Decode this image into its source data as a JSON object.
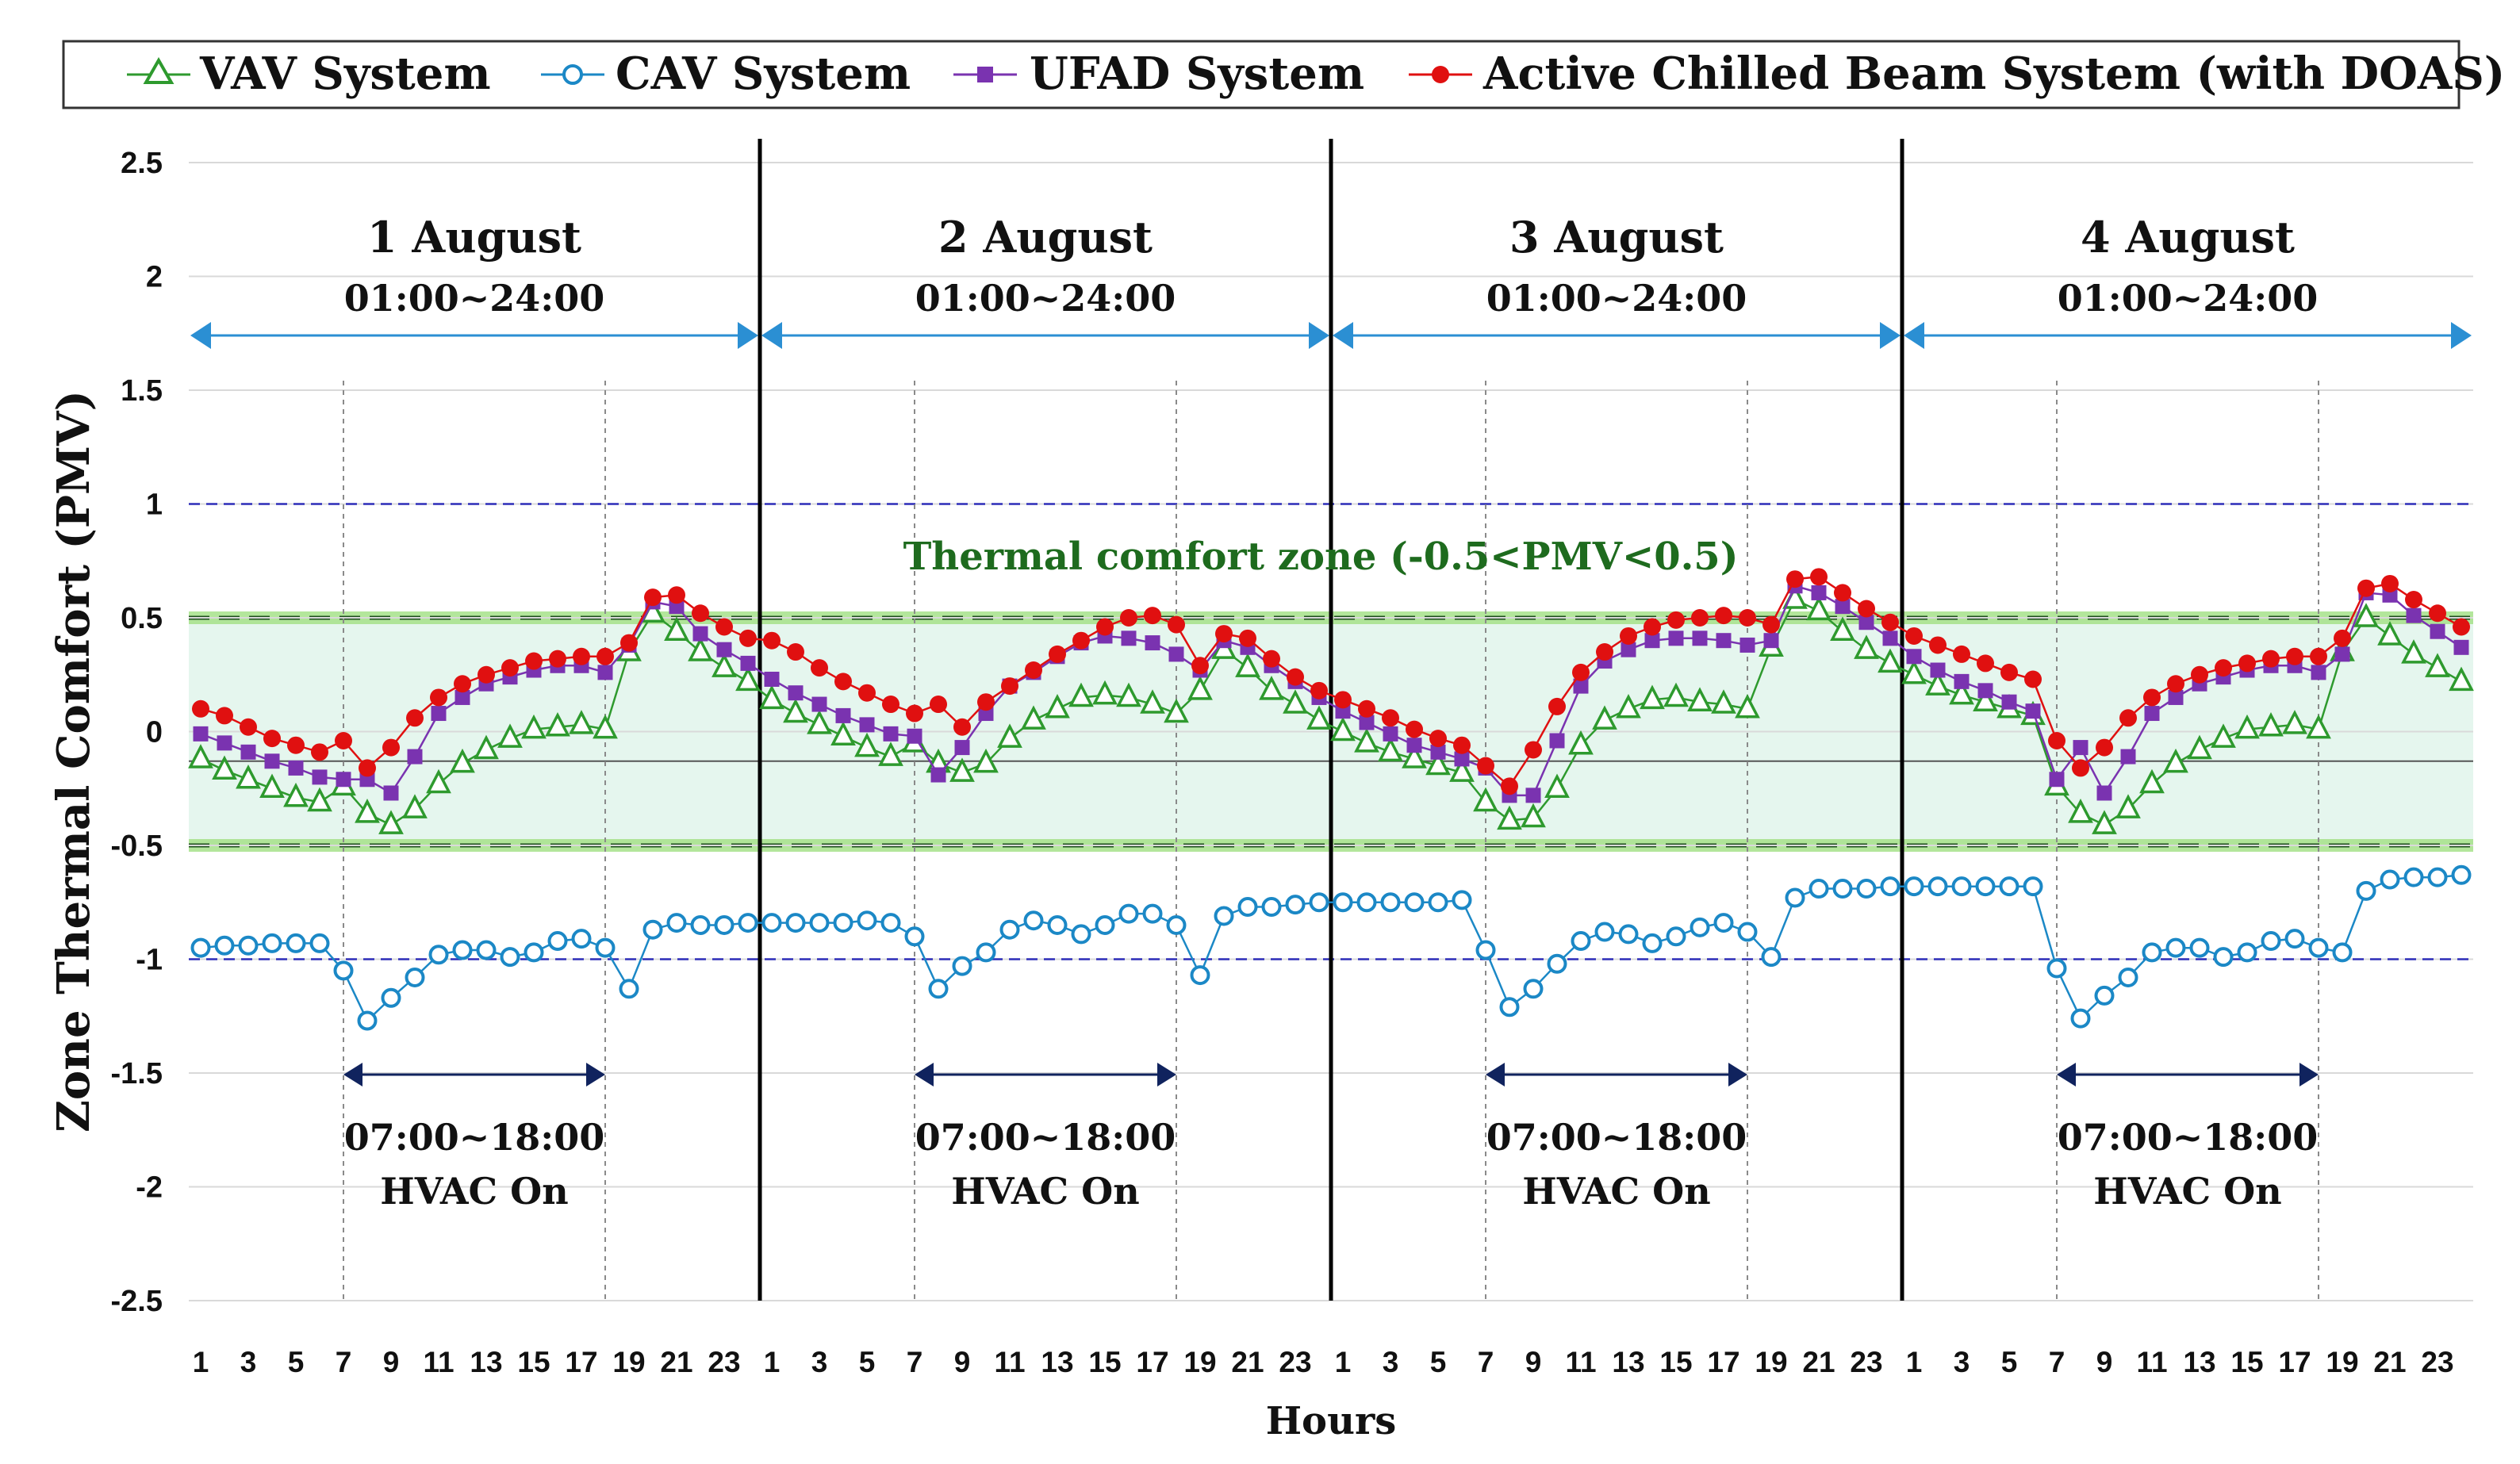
{
  "colors": {
    "vav": "#2e9a2e",
    "cav": "#1b88c6",
    "ufad": "#7a33b0",
    "acb": "#e01010",
    "zone_fill": "#e5f6ee",
    "zone_line": "#1e4d1e",
    "zone_glow": "#a6e28a",
    "day_arrow": "#2b8fd3",
    "hvac_arrow": "#10235e",
    "ref_line": "#2d2db8"
  },
  "chart_data": {
    "type": "line",
    "title": "",
    "xlabel": "Hours",
    "ylabel": "Zone Thermal Comfort (PMV)",
    "ylim": [
      -2.5,
      2.5
    ],
    "yticks": [
      "2.5",
      "2",
      "1.5",
      "1",
      "0.5",
      "0",
      "-0.5",
      "-1",
      "-1.5",
      "-2",
      "-2.5"
    ],
    "ytick_values": [
      2.5,
      2,
      1.5,
      1,
      0.5,
      0,
      -0.5,
      -1,
      -1.5,
      -2,
      -2.5
    ],
    "hours_per_day": 24,
    "x_tick_labels": [
      "1",
      "3",
      "5",
      "7",
      "9",
      "11",
      "13",
      "15",
      "17",
      "19",
      "21",
      "23"
    ],
    "grid": true,
    "legend": [
      {
        "key": "vav",
        "label": "VAV System"
      },
      {
        "key": "cav",
        "label": "CAV System"
      },
      {
        "key": "ufad",
        "label": "UFAD System"
      },
      {
        "key": "acb",
        "label": "Active Chilled Beam System (with DOAS)"
      }
    ],
    "days": [
      {
        "label": "1 August",
        "range": "01:00~24:00",
        "hvac_range": "07:00~18:00",
        "hvac_label": "HVAC On"
      },
      {
        "label": "2 August",
        "range": "01:00~24:00",
        "hvac_range": "07:00~18:00",
        "hvac_label": "HVAC On"
      },
      {
        "label": "3 August",
        "range": "01:00~24:00",
        "hvac_range": "07:00~18:00",
        "hvac_label": "HVAC On"
      },
      {
        "label": "4 August",
        "range": "01:00~24:00",
        "hvac_range": "07:00~18:00",
        "hvac_label": "HVAC On"
      }
    ],
    "hvac_on_hours": [
      7,
      18
    ],
    "comfort_zone": {
      "label": "Thermal comfort zone (-0.5<PMV<0.5)",
      "lower": -0.5,
      "upper": 0.5
    },
    "reference_lines": [
      1,
      -1,
      -0.13
    ],
    "series": [
      {
        "key": "vav",
        "name": "VAV System",
        "marker": "triangle",
        "values": [
          -0.12,
          -0.17,
          -0.21,
          -0.25,
          -0.29,
          -0.31,
          -0.24,
          -0.36,
          -0.41,
          -0.34,
          -0.23,
          -0.14,
          -0.08,
          -0.03,
          0.01,
          0.02,
          0.03,
          0.01,
          0.35,
          0.52,
          0.44,
          0.35,
          0.28,
          0.22,
          0.14,
          0.08,
          0.03,
          -0.02,
          -0.07,
          -0.11,
          -0.05,
          -0.14,
          -0.18,
          -0.14,
          -0.03,
          0.05,
          0.1,
          0.15,
          0.16,
          0.15,
          0.12,
          0.08,
          0.18,
          0.36,
          0.28,
          0.18,
          0.12,
          0.05,
          0.0,
          -0.05,
          -0.09,
          -0.12,
          -0.15,
          -0.18,
          -0.31,
          -0.39,
          -0.38,
          -0.25,
          -0.06,
          0.05,
          0.1,
          0.14,
          0.15,
          0.13,
          0.12,
          0.1,
          0.37,
          0.58,
          0.53,
          0.44,
          0.36,
          0.3,
          0.25,
          0.2,
          0.16,
          0.13,
          0.1,
          0.07,
          -0.24,
          -0.36,
          -0.41,
          -0.34,
          -0.23,
          -0.14,
          -0.08,
          -0.03,
          0.01,
          0.02,
          0.03,
          0.01,
          0.35,
          0.5,
          0.42,
          0.34,
          0.28,
          0.22
        ]
      },
      {
        "key": "cav",
        "name": "CAV System",
        "marker": "circle",
        "values": [
          -0.95,
          -0.94,
          -0.94,
          -0.93,
          -0.93,
          -0.93,
          -1.05,
          -1.27,
          -1.17,
          -1.08,
          -0.98,
          -0.96,
          -0.96,
          -0.99,
          -0.97,
          -0.92,
          -0.91,
          -0.95,
          -1.13,
          -0.87,
          -0.84,
          -0.85,
          -0.85,
          -0.84,
          -0.84,
          -0.84,
          -0.84,
          -0.84,
          -0.83,
          -0.84,
          -0.9,
          -1.13,
          -1.03,
          -0.97,
          -0.87,
          -0.83,
          -0.85,
          -0.89,
          -0.85,
          -0.8,
          -0.8,
          -0.85,
          -1.07,
          -0.81,
          -0.77,
          -0.77,
          -0.76,
          -0.75,
          -0.75,
          -0.75,
          -0.75,
          -0.75,
          -0.75,
          -0.74,
          -0.96,
          -1.21,
          -1.13,
          -1.02,
          -0.92,
          -0.88,
          -0.89,
          -0.93,
          -0.9,
          -0.86,
          -0.84,
          -0.88,
          -0.99,
          -0.73,
          -0.69,
          -0.69,
          -0.69,
          -0.68,
          -0.68,
          -0.68,
          -0.68,
          -0.68,
          -0.68,
          -0.68,
          -1.04,
          -1.26,
          -1.16,
          -1.08,
          -0.97,
          -0.95,
          -0.95,
          -0.99,
          -0.97,
          -0.92,
          -0.91,
          -0.95,
          -0.97,
          -0.7,
          -0.65,
          -0.64,
          -0.64,
          -0.63
        ]
      },
      {
        "key": "ufad",
        "name": "UFAD System",
        "marker": "square",
        "values": [
          -0.01,
          -0.05,
          -0.09,
          -0.13,
          -0.16,
          -0.2,
          -0.21,
          -0.21,
          -0.27,
          -0.11,
          0.08,
          0.15,
          0.21,
          0.24,
          0.27,
          0.29,
          0.29,
          0.26,
          0.38,
          0.57,
          0.55,
          0.43,
          0.36,
          0.3,
          0.23,
          0.17,
          0.12,
          0.07,
          0.03,
          -0.01,
          -0.02,
          -0.19,
          -0.07,
          0.08,
          0.2,
          0.26,
          0.33,
          0.39,
          0.42,
          0.41,
          0.39,
          0.34,
          0.27,
          0.4,
          0.37,
          0.29,
          0.22,
          0.15,
          0.09,
          0.04,
          -0.01,
          -0.06,
          -0.09,
          -0.12,
          -0.16,
          -0.28,
          -0.28,
          -0.04,
          0.2,
          0.31,
          0.36,
          0.4,
          0.41,
          0.41,
          0.4,
          0.38,
          0.4,
          0.64,
          0.61,
          0.55,
          0.48,
          0.41,
          0.33,
          0.27,
          0.22,
          0.18,
          0.13,
          0.09,
          -0.21,
          -0.07,
          -0.27,
          -0.11,
          0.08,
          0.15,
          0.21,
          0.24,
          0.27,
          0.29,
          0.29,
          0.26,
          0.34,
          0.61,
          0.6,
          0.51,
          0.44,
          0.37
        ]
      },
      {
        "key": "acb",
        "name": "Active Chilled Beam System (with DOAS)",
        "marker": "dot",
        "values": [
          0.1,
          0.07,
          0.02,
          -0.03,
          -0.06,
          -0.09,
          -0.04,
          -0.16,
          -0.07,
          0.06,
          0.15,
          0.21,
          0.25,
          0.28,
          0.31,
          0.32,
          0.33,
          0.33,
          0.39,
          0.59,
          0.6,
          0.52,
          0.46,
          0.41,
          0.4,
          0.35,
          0.28,
          0.22,
          0.17,
          0.12,
          0.08,
          0.12,
          0.02,
          0.13,
          0.2,
          0.27,
          0.34,
          0.4,
          0.46,
          0.5,
          0.51,
          0.47,
          0.29,
          0.43,
          0.41,
          0.32,
          0.24,
          0.18,
          0.14,
          0.1,
          0.06,
          0.01,
          -0.03,
          -0.06,
          -0.15,
          -0.24,
          -0.08,
          0.11,
          0.26,
          0.35,
          0.42,
          0.46,
          0.49,
          0.5,
          0.51,
          0.5,
          0.47,
          0.67,
          0.68,
          0.61,
          0.54,
          0.48,
          0.42,
          0.38,
          0.34,
          0.3,
          0.26,
          0.23,
          -0.04,
          -0.16,
          -0.07,
          0.06,
          0.15,
          0.21,
          0.25,
          0.28,
          0.3,
          0.32,
          0.33,
          0.33,
          0.41,
          0.63,
          0.65,
          0.58,
          0.52,
          0.46
        ]
      }
    ]
  }
}
